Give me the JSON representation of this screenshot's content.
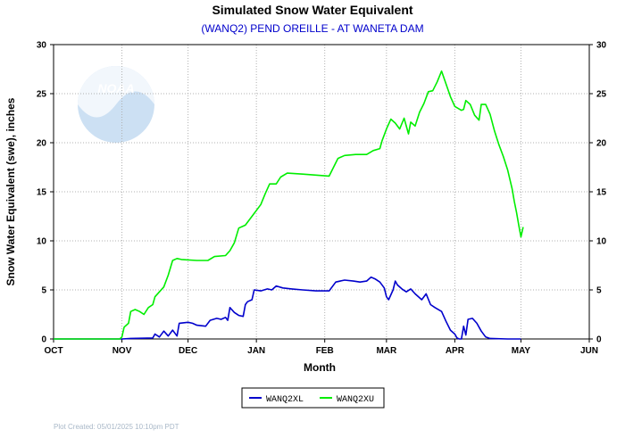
{
  "chart_data": {
    "type": "line",
    "title": "Simulated Snow Water Equivalent",
    "subtitle": "(WANQ2) PEND OREILLE - AT WANETA DAM",
    "xlabel": "Month",
    "ylabel": "Snow Water Equivalent (swe),  inches",
    "x_tick_labels": [
      "OCT",
      "NOV",
      "DEC",
      "JAN",
      "FEB",
      "MAR",
      "APR",
      "MAY",
      "JUN"
    ],
    "xlim": [
      "2024-10-01",
      "2025-06-01"
    ],
    "ylim": [
      0,
      30
    ],
    "y_ticks": [
      0,
      5,
      10,
      15,
      20,
      25,
      30
    ],
    "grid": "dotted",
    "legend_position": "bottom-center",
    "logo": "NOAA",
    "series": [
      {
        "name": "WANQ2XL",
        "color": "#0000cc",
        "points": [
          [
            "2024-10-01",
            0.0
          ],
          [
            "2024-11-01",
            0.0
          ],
          [
            "2024-11-05",
            0.05
          ],
          [
            "2024-11-15",
            0.1
          ],
          [
            "2024-11-16",
            0.5
          ],
          [
            "2024-11-18",
            0.2
          ],
          [
            "2024-11-20",
            0.8
          ],
          [
            "2024-11-22",
            0.3
          ],
          [
            "2024-11-24",
            0.9
          ],
          [
            "2024-11-26",
            0.3
          ],
          [
            "2024-11-27",
            1.6
          ],
          [
            "2024-12-01",
            1.7
          ],
          [
            "2024-12-03",
            1.6
          ],
          [
            "2024-12-05",
            1.4
          ],
          [
            "2024-12-09",
            1.3
          ],
          [
            "2024-12-11",
            1.9
          ],
          [
            "2024-12-14",
            2.1
          ],
          [
            "2024-12-16",
            2.0
          ],
          [
            "2024-12-18",
            2.2
          ],
          [
            "2024-12-19",
            1.9
          ],
          [
            "2024-12-20",
            3.2
          ],
          [
            "2024-12-22",
            2.7
          ],
          [
            "2024-12-24",
            2.4
          ],
          [
            "2024-12-26",
            2.3
          ],
          [
            "2024-12-27",
            3.5
          ],
          [
            "2024-12-28",
            3.8
          ],
          [
            "2024-12-30",
            4.0
          ],
          [
            "2024-12-31",
            5.0
          ],
          [
            "2025-01-03",
            4.9
          ],
          [
            "2025-01-06",
            5.1
          ],
          [
            "2025-01-08",
            5.0
          ],
          [
            "2025-01-10",
            5.4
          ],
          [
            "2025-01-13",
            5.2
          ],
          [
            "2025-01-17",
            5.1
          ],
          [
            "2025-01-22",
            5.0
          ],
          [
            "2025-01-28",
            4.9
          ],
          [
            "2025-02-03",
            4.9
          ],
          [
            "2025-02-06",
            5.8
          ],
          [
            "2025-02-10",
            6.0
          ],
          [
            "2025-02-14",
            5.9
          ],
          [
            "2025-02-17",
            5.8
          ],
          [
            "2025-02-20",
            5.9
          ],
          [
            "2025-02-22",
            6.3
          ],
          [
            "2025-02-24",
            6.1
          ],
          [
            "2025-02-26",
            5.8
          ],
          [
            "2025-02-28",
            5.2
          ],
          [
            "2025-03-01",
            4.3
          ],
          [
            "2025-03-02",
            4.0
          ],
          [
            "2025-03-04",
            5.0
          ],
          [
            "2025-03-05",
            5.9
          ],
          [
            "2025-03-06",
            5.5
          ],
          [
            "2025-03-08",
            5.1
          ],
          [
            "2025-03-10",
            4.8
          ],
          [
            "2025-03-12",
            5.1
          ],
          [
            "2025-03-14",
            4.6
          ],
          [
            "2025-03-17",
            4.0
          ],
          [
            "2025-03-19",
            4.6
          ],
          [
            "2025-03-21",
            3.5
          ],
          [
            "2025-03-23",
            3.2
          ],
          [
            "2025-03-26",
            2.8
          ],
          [
            "2025-03-28",
            1.8
          ],
          [
            "2025-03-30",
            0.9
          ],
          [
            "2025-04-01",
            0.5
          ],
          [
            "2025-04-02",
            0.1
          ],
          [
            "2025-04-03",
            0.0
          ],
          [
            "2025-04-04",
            0.0
          ],
          [
            "2025-04-05",
            1.3
          ],
          [
            "2025-04-06",
            0.4
          ],
          [
            "2025-04-07",
            2.0
          ],
          [
            "2025-04-09",
            2.1
          ],
          [
            "2025-04-11",
            1.6
          ],
          [
            "2025-04-13",
            0.8
          ],
          [
            "2025-04-15",
            0.2
          ],
          [
            "2025-04-17",
            0.05
          ],
          [
            "2025-04-25",
            0.0
          ],
          [
            "2025-05-01",
            0.0
          ]
        ]
      },
      {
        "name": "WANQ2XU",
        "color": "#00ee00",
        "points": [
          [
            "2024-10-01",
            0.0
          ],
          [
            "2024-10-31",
            0.0
          ],
          [
            "2024-11-01",
            0.2
          ],
          [
            "2024-11-02",
            1.2
          ],
          [
            "2024-11-04",
            1.6
          ],
          [
            "2024-11-05",
            2.8
          ],
          [
            "2024-11-07",
            3.0
          ],
          [
            "2024-11-09",
            2.8
          ],
          [
            "2024-11-11",
            2.5
          ],
          [
            "2024-11-13",
            3.2
          ],
          [
            "2024-11-15",
            3.5
          ],
          [
            "2024-11-16",
            4.3
          ],
          [
            "2024-11-18",
            4.8
          ],
          [
            "2024-11-20",
            5.3
          ],
          [
            "2024-11-22",
            6.5
          ],
          [
            "2024-11-24",
            8.0
          ],
          [
            "2024-11-26",
            8.2
          ],
          [
            "2024-11-28",
            8.1
          ],
          [
            "2024-12-05",
            8.0
          ],
          [
            "2024-12-10",
            8.0
          ],
          [
            "2024-12-13",
            8.4
          ],
          [
            "2024-12-18",
            8.5
          ],
          [
            "2024-12-20",
            9.0
          ],
          [
            "2024-12-22",
            9.8
          ],
          [
            "2024-12-24",
            11.3
          ],
          [
            "2024-12-27",
            11.6
          ],
          [
            "2024-12-30",
            12.5
          ],
          [
            "2025-01-03",
            13.7
          ],
          [
            "2025-01-05",
            14.8
          ],
          [
            "2025-01-07",
            15.8
          ],
          [
            "2025-01-10",
            15.8
          ],
          [
            "2025-01-12",
            16.5
          ],
          [
            "2025-01-15",
            16.9
          ],
          [
            "2025-01-22",
            16.8
          ],
          [
            "2025-01-28",
            16.7
          ],
          [
            "2025-02-03",
            16.6
          ],
          [
            "2025-02-05",
            17.5
          ],
          [
            "2025-02-07",
            18.4
          ],
          [
            "2025-02-10",
            18.7
          ],
          [
            "2025-02-15",
            18.8
          ],
          [
            "2025-02-20",
            18.8
          ],
          [
            "2025-02-23",
            19.2
          ],
          [
            "2025-02-26",
            19.4
          ],
          [
            "2025-02-27",
            20.2
          ],
          [
            "2025-03-01",
            21.4
          ],
          [
            "2025-03-03",
            22.4
          ],
          [
            "2025-03-05",
            22.0
          ],
          [
            "2025-03-07",
            21.4
          ],
          [
            "2025-03-09",
            22.5
          ],
          [
            "2025-03-11",
            20.9
          ],
          [
            "2025-03-12",
            22.1
          ],
          [
            "2025-03-14",
            21.7
          ],
          [
            "2025-03-16",
            23.1
          ],
          [
            "2025-03-18",
            24.0
          ],
          [
            "2025-03-20",
            25.2
          ],
          [
            "2025-03-22",
            25.3
          ],
          [
            "2025-03-24",
            26.2
          ],
          [
            "2025-03-26",
            27.3
          ],
          [
            "2025-03-28",
            26.0
          ],
          [
            "2025-03-30",
            24.7
          ],
          [
            "2025-04-01",
            23.7
          ],
          [
            "2025-04-04",
            23.3
          ],
          [
            "2025-04-05",
            23.4
          ],
          [
            "2025-04-06",
            24.3
          ],
          [
            "2025-04-08",
            23.9
          ],
          [
            "2025-04-10",
            22.8
          ],
          [
            "2025-04-12",
            22.3
          ],
          [
            "2025-04-13",
            23.9
          ],
          [
            "2025-04-15",
            23.9
          ],
          [
            "2025-04-17",
            22.9
          ],
          [
            "2025-04-19",
            21.2
          ],
          [
            "2025-04-21",
            19.8
          ],
          [
            "2025-04-23",
            18.6
          ],
          [
            "2025-04-25",
            17.2
          ],
          [
            "2025-04-27",
            15.3
          ],
          [
            "2025-04-28",
            14.0
          ],
          [
            "2025-04-29",
            12.9
          ],
          [
            "2025-04-30",
            11.6
          ],
          [
            "2025-05-01",
            10.4
          ],
          [
            "2025-05-02",
            11.4
          ]
        ]
      }
    ]
  },
  "footer": {
    "plot_created": "Plot Created: 05/01/2025 10:10pm PDT"
  }
}
